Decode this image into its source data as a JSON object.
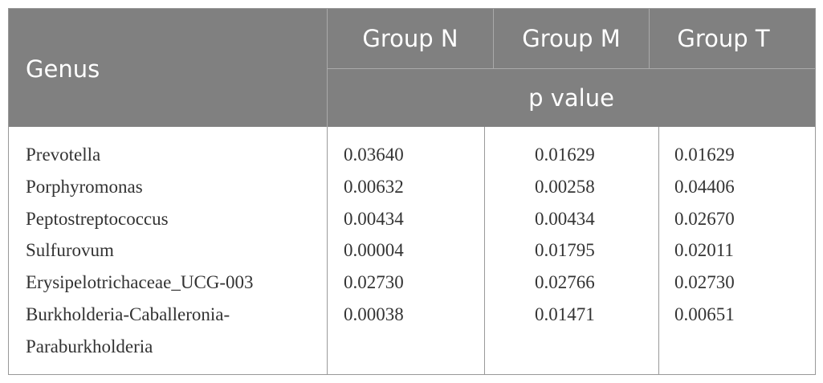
{
  "table": {
    "header": {
      "genus": "Genus",
      "groups": [
        "Group N",
        "Group M",
        "Group T"
      ],
      "subheader": "p value"
    },
    "rows": [
      {
        "genus": "Prevotella",
        "values": [
          "0.03640",
          "0.01629",
          "0.01629"
        ]
      },
      {
        "genus": "Porphyromonas",
        "values": [
          "0.00632",
          "0.00258",
          "0.04406"
        ]
      },
      {
        "genus": "Peptostreptococcus",
        "values": [
          "0.00434",
          "0.00434",
          "0.02670"
        ]
      },
      {
        "genus": "Sulfurovum",
        "values": [
          "0.00004",
          "0.01795",
          "0.02011"
        ]
      },
      {
        "genus": "Erysipelotrichaceae_UCG-003",
        "values": [
          "0.02730",
          "0.02766",
          "0.02730"
        ]
      },
      {
        "genus": "Burkholderia-Caballeronia-Paraburkholderia",
        "values": [
          "0.00038",
          "0.01471",
          "0.00651"
        ]
      }
    ]
  }
}
